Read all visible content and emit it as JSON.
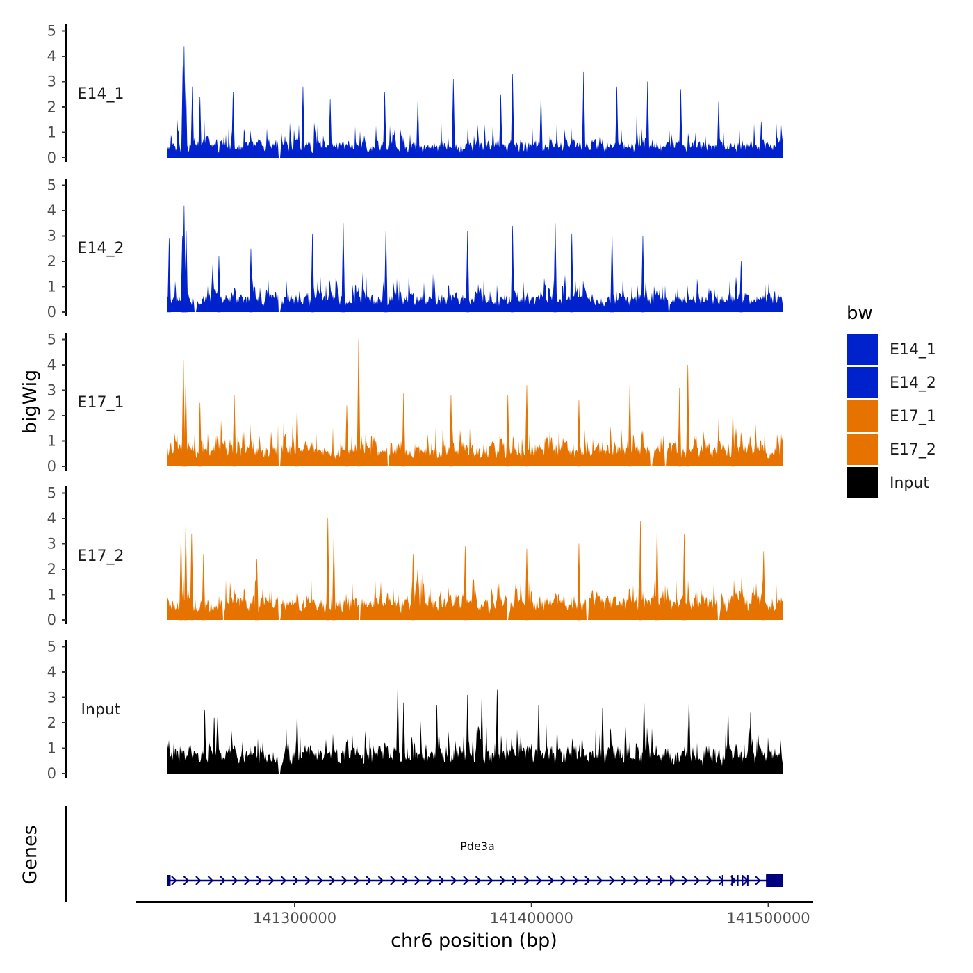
{
  "chart_data": {
    "type": "area",
    "y_axis_title": "bigWig",
    "gene_panel_title": "Genes",
    "xlabel": "chr6 position (bp)",
    "chromosome": "chr6",
    "x_range": [
      141246000,
      141506000
    ],
    "x_ticks": [
      141300000,
      141400000,
      141500000
    ],
    "x_tick_labels": [
      "141300000",
      "141400000",
      "141500000"
    ],
    "y_ticks": [
      0,
      1,
      2,
      3,
      4,
      5
    ],
    "ylim": [
      0,
      5.3
    ],
    "legend": {
      "title": "bw",
      "position": "right",
      "entries": [
        {
          "label": "E14_1",
          "color": "#0022CC"
        },
        {
          "label": "E14_2",
          "color": "#0022CC"
        },
        {
          "label": "E17_1",
          "color": "#E67300"
        },
        {
          "label": "E17_2",
          "color": "#E67300"
        },
        {
          "label": "Input",
          "color": "#000000"
        }
      ]
    },
    "series": [
      {
        "name": "E14_1",
        "color": "#0022CC",
        "baseline": 0.55,
        "gaps": [
          141293500
        ],
        "peaks": [
          {
            "x": 141253300,
            "y": 4.4
          },
          {
            "x": 141252800,
            "y": 3.6
          },
          {
            "x": 141254000,
            "y": 3.0
          },
          {
            "x": 141256800,
            "y": 2.8
          },
          {
            "x": 141260000,
            "y": 2.4
          },
          {
            "x": 141274000,
            "y": 2.6
          },
          {
            "x": 141303500,
            "y": 2.8
          },
          {
            "x": 141315000,
            "y": 2.3
          },
          {
            "x": 141338000,
            "y": 2.6
          },
          {
            "x": 141352000,
            "y": 2.2
          },
          {
            "x": 141367000,
            "y": 3.1
          },
          {
            "x": 141387000,
            "y": 2.5
          },
          {
            "x": 141392000,
            "y": 3.3
          },
          {
            "x": 141404000,
            "y": 2.4
          },
          {
            "x": 141422000,
            "y": 3.4
          },
          {
            "x": 141436000,
            "y": 2.8
          },
          {
            "x": 141449000,
            "y": 3.0
          },
          {
            "x": 141463000,
            "y": 2.7
          },
          {
            "x": 141479000,
            "y": 2.2
          },
          {
            "x": 141497000,
            "y": 1.4
          }
        ]
      },
      {
        "name": "E14_2",
        "color": "#0022CC",
        "baseline": 0.6,
        "gaps": [
          141258000,
          141293500,
          141458000
        ],
        "peaks": [
          {
            "x": 141253300,
            "y": 4.2
          },
          {
            "x": 141252600,
            "y": 3.0
          },
          {
            "x": 141254200,
            "y": 3.2
          },
          {
            "x": 141247000,
            "y": 2.9
          },
          {
            "x": 141268000,
            "y": 2.2
          },
          {
            "x": 141281500,
            "y": 2.5
          },
          {
            "x": 141307500,
            "y": 3.1
          },
          {
            "x": 141320500,
            "y": 3.5
          },
          {
            "x": 141338500,
            "y": 3.2
          },
          {
            "x": 141373000,
            "y": 3.2
          },
          {
            "x": 141392000,
            "y": 3.4
          },
          {
            "x": 141410000,
            "y": 3.5
          },
          {
            "x": 141417000,
            "y": 3.1
          },
          {
            "x": 141434000,
            "y": 3.1
          },
          {
            "x": 141447000,
            "y": 3.0
          },
          {
            "x": 141488500,
            "y": 2.0
          }
        ]
      },
      {
        "name": "E17_1",
        "color": "#E67300",
        "baseline": 0.75,
        "gaps": [
          141293500,
          141339500,
          141450500,
          141456500
        ],
        "peaks": [
          {
            "x": 141253000,
            "y": 4.2
          },
          {
            "x": 141254000,
            "y": 3.3
          },
          {
            "x": 141260000,
            "y": 2.5
          },
          {
            "x": 141274500,
            "y": 2.8
          },
          {
            "x": 141301000,
            "y": 2.3
          },
          {
            "x": 141322000,
            "y": 2.4
          },
          {
            "x": 141327000,
            "y": 5.0
          },
          {
            "x": 141346000,
            "y": 2.9
          },
          {
            "x": 141366000,
            "y": 2.8
          },
          {
            "x": 141390000,
            "y": 2.8
          },
          {
            "x": 141398000,
            "y": 3.2
          },
          {
            "x": 141420000,
            "y": 2.6
          },
          {
            "x": 141441500,
            "y": 3.2
          },
          {
            "x": 141462500,
            "y": 3.1
          },
          {
            "x": 141466000,
            "y": 4.0
          },
          {
            "x": 141485000,
            "y": 2.1
          }
        ]
      },
      {
        "name": "E17_2",
        "color": "#E67300",
        "baseline": 0.75,
        "gaps": [
          141270000,
          141293500,
          141327500,
          141390000,
          141423500,
          141479000
        ],
        "peaks": [
          {
            "x": 141254000,
            "y": 3.7
          },
          {
            "x": 141252000,
            "y": 3.3
          },
          {
            "x": 141256500,
            "y": 3.4
          },
          {
            "x": 141261500,
            "y": 2.6
          },
          {
            "x": 141284000,
            "y": 2.4
          },
          {
            "x": 141314000,
            "y": 4.0
          },
          {
            "x": 141316500,
            "y": 3.2
          },
          {
            "x": 141350000,
            "y": 2.6
          },
          {
            "x": 141372000,
            "y": 2.9
          },
          {
            "x": 141398000,
            "y": 2.8
          },
          {
            "x": 141420000,
            "y": 3.0
          },
          {
            "x": 141446000,
            "y": 3.9
          },
          {
            "x": 141453000,
            "y": 3.6
          },
          {
            "x": 141464500,
            "y": 3.4
          },
          {
            "x": 141498000,
            "y": 2.7
          }
        ]
      },
      {
        "name": "Input",
        "color": "#000000",
        "baseline": 0.85,
        "gaps": [
          141293500
        ],
        "peaks": [
          {
            "x": 141262000,
            "y": 2.5
          },
          {
            "x": 141266000,
            "y": 2.2
          },
          {
            "x": 141301000,
            "y": 2.3
          },
          {
            "x": 141343500,
            "y": 3.3
          },
          {
            "x": 141346000,
            "y": 2.8
          },
          {
            "x": 141360000,
            "y": 2.7
          },
          {
            "x": 141373000,
            "y": 3.1
          },
          {
            "x": 141379000,
            "y": 2.9
          },
          {
            "x": 141385500,
            "y": 3.3
          },
          {
            "x": 141403000,
            "y": 2.7
          },
          {
            "x": 141430000,
            "y": 2.6
          },
          {
            "x": 141447500,
            "y": 2.9
          },
          {
            "x": 141466500,
            "y": 2.9
          },
          {
            "x": 141483000,
            "y": 2.4
          },
          {
            "x": 141492500,
            "y": 2.4
          }
        ]
      }
    ],
    "genes": [
      {
        "name": "Pde3a",
        "strand": "+",
        "start": 141246000,
        "end": 141506000,
        "color": "#000080",
        "exons": [
          {
            "start": 141246200,
            "end": 141247600
          },
          {
            "start": 141458500,
            "end": 141458900
          },
          {
            "start": 141480400,
            "end": 141480800
          },
          {
            "start": 141484400,
            "end": 141484800
          },
          {
            "start": 141486800,
            "end": 141487200
          },
          {
            "start": 141488800,
            "end": 141489200
          },
          {
            "start": 141491000,
            "end": 141491400
          },
          {
            "start": 141499000,
            "end": 141506000
          }
        ]
      }
    ]
  }
}
